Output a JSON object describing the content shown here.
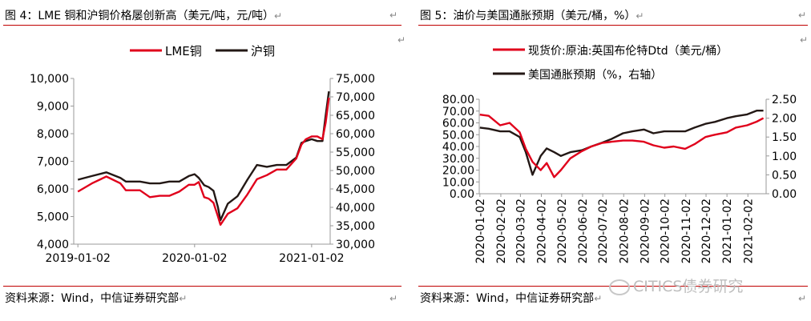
{
  "left": {
    "title": "图 4：LME 铜和沪铜价格屡创新高（美元/吨，元/吨）",
    "source": "资料来源：Wind，中信证券研究部",
    "legend": [
      "LME铜",
      "沪铜"
    ],
    "y_left_ticks": [
      "10,000",
      "9,000",
      "8,000",
      "7,000",
      "6,000",
      "5,000",
      "4,000"
    ],
    "y_right_ticks": [
      "75,000",
      "70,000",
      "65,000",
      "60,000",
      "55,000",
      "50,000",
      "45,000",
      "40,000",
      "35,000",
      "30,000"
    ],
    "x_ticks": [
      "2019-01-02",
      "2020-01-02",
      "2021-01-02"
    ]
  },
  "right": {
    "title": "图 5：油价与美国通胀预期（美元/桶，%）",
    "source": "资料来源：Wind，中信证券研究部",
    "legend": [
      "现货价:原油:英国布伦特Dtd（美元/桶）",
      "美国通胀预期（%，右轴）"
    ],
    "y_left_ticks": [
      "80.00",
      "70.00",
      "60.00",
      "50.00",
      "40.00",
      "30.00",
      "20.00",
      "10.00",
      "0.00"
    ],
    "y_right_ticks": [
      "2.50",
      "2.00",
      "1.50",
      "1.00",
      "0.50",
      "0.00"
    ],
    "x_ticks": [
      "2020-01-02",
      "2020-02-02",
      "2020-03-02",
      "2020-04-02",
      "2020-05-02",
      "2020-06-02",
      "2020-07-02",
      "2020-08-02",
      "2020-09-02",
      "2020-10-02",
      "2020-11-02",
      "2020-12-02",
      "2021-01-02",
      "2021-02-02"
    ]
  },
  "watermark": "CITICS债券研究",
  "colors": {
    "red": "#e0001b",
    "black": "#231815",
    "rule": "#c00000"
  },
  "chart_data": [
    {
      "type": "line",
      "title": "LME 铜和沪铜价格屡创新高（美元/吨，元/吨）",
      "ylim_left": [
        4000,
        10000
      ],
      "ylim_right": [
        30000,
        75000
      ],
      "series": [
        {
          "name": "LME铜",
          "axis": "left",
          "x": [
            "2019-01-02",
            "2019-02-15",
            "2019-04-01",
            "2019-05-15",
            "2019-06-01",
            "2019-07-15",
            "2019-08-15",
            "2019-09-15",
            "2019-10-15",
            "2019-11-15",
            "2019-12-15",
            "2020-01-02",
            "2020-01-15",
            "2020-02-01",
            "2020-02-15",
            "2020-03-01",
            "2020-03-15",
            "2020-03-23",
            "2020-04-15",
            "2020-05-15",
            "2020-06-15",
            "2020-07-15",
            "2020-08-15",
            "2020-09-15",
            "2020-10-15",
            "2020-11-15",
            "2020-12-01",
            "2020-12-15",
            "2021-01-02",
            "2021-01-20",
            "2021-02-05",
            "2021-02-15",
            "2021-02-25"
          ],
          "values": [
            5900,
            6200,
            6450,
            6200,
            5950,
            5950,
            5700,
            5750,
            5750,
            5900,
            6150,
            6150,
            6250,
            5700,
            5650,
            5500,
            5000,
            4700,
            5100,
            5300,
            5800,
            6350,
            6500,
            6700,
            6700,
            7100,
            7600,
            7800,
            7900,
            7900,
            7800,
            8400,
            9300
          ]
        },
        {
          "name": "沪铜",
          "axis": "right",
          "x": [
            "2019-01-02",
            "2019-02-15",
            "2019-04-01",
            "2019-05-15",
            "2019-06-01",
            "2019-07-15",
            "2019-08-15",
            "2019-09-15",
            "2019-10-15",
            "2019-11-15",
            "2019-12-15",
            "2020-01-02",
            "2020-01-15",
            "2020-02-01",
            "2020-02-15",
            "2020-03-01",
            "2020-03-15",
            "2020-03-23",
            "2020-04-15",
            "2020-05-15",
            "2020-06-15",
            "2020-07-15",
            "2020-08-15",
            "2020-09-15",
            "2020-10-15",
            "2020-11-15",
            "2020-12-01",
            "2020-12-15",
            "2021-01-02",
            "2021-01-20",
            "2021-02-05",
            "2021-02-15",
            "2021-02-25"
          ],
          "values": [
            47500,
            48500,
            49500,
            48000,
            47000,
            47000,
            46500,
            46500,
            47000,
            47000,
            48500,
            49000,
            48000,
            46000,
            45500,
            44500,
            40000,
            36500,
            41000,
            43000,
            47500,
            51500,
            51000,
            51500,
            51500,
            53500,
            57500,
            58000,
            58500,
            58000,
            58000,
            65000,
            71500
          ]
        }
      ]
    },
    {
      "type": "line",
      "title": "油价与美国通胀预期（美元/桶，%）",
      "ylim_left": [
        0,
        80
      ],
      "ylim_right": [
        0,
        2.5
      ],
      "series": [
        {
          "name": "现货价:原油:英国布伦特Dtd（美元/桶）",
          "axis": "left",
          "x": [
            "2020-01-02",
            "2020-01-15",
            "2020-02-01",
            "2020-02-15",
            "2020-03-01",
            "2020-03-10",
            "2020-03-20",
            "2020-04-01",
            "2020-04-10",
            "2020-04-21",
            "2020-05-01",
            "2020-05-15",
            "2020-06-01",
            "2020-06-15",
            "2020-07-01",
            "2020-07-15",
            "2020-08-01",
            "2020-08-15",
            "2020-09-01",
            "2020-09-15",
            "2020-10-01",
            "2020-10-15",
            "2020-11-01",
            "2020-11-15",
            "2020-12-01",
            "2020-12-15",
            "2021-01-02",
            "2021-01-15",
            "2021-02-01",
            "2021-02-15",
            "2021-02-25"
          ],
          "values": [
            67,
            66,
            58,
            60,
            52,
            38,
            27,
            20,
            26,
            14,
            20,
            30,
            36,
            40,
            43,
            44,
            45,
            45,
            44,
            41,
            39,
            40,
            38,
            42,
            48,
            50,
            52,
            56,
            58,
            61,
            64
          ]
        },
        {
          "name": "美国通胀预期（%，右轴）",
          "axis": "right",
          "x": [
            "2020-01-02",
            "2020-01-15",
            "2020-02-01",
            "2020-02-15",
            "2020-03-01",
            "2020-03-10",
            "2020-03-20",
            "2020-04-01",
            "2020-04-10",
            "2020-04-21",
            "2020-05-01",
            "2020-05-15",
            "2020-06-01",
            "2020-06-15",
            "2020-07-01",
            "2020-07-15",
            "2020-08-01",
            "2020-08-15",
            "2020-09-01",
            "2020-09-15",
            "2020-10-01",
            "2020-10-15",
            "2020-11-01",
            "2020-11-15",
            "2020-12-01",
            "2020-12-15",
            "2021-01-02",
            "2021-01-15",
            "2021-02-01",
            "2021-02-15",
            "2021-02-25"
          ],
          "values": [
            1.75,
            1.72,
            1.65,
            1.65,
            1.5,
            1.1,
            0.5,
            1.0,
            1.2,
            1.1,
            1.0,
            1.1,
            1.15,
            1.25,
            1.35,
            1.45,
            1.6,
            1.65,
            1.7,
            1.6,
            1.65,
            1.65,
            1.65,
            1.75,
            1.85,
            1.9,
            2.0,
            2.05,
            2.1,
            2.2,
            2.2
          ]
        }
      ]
    }
  ]
}
